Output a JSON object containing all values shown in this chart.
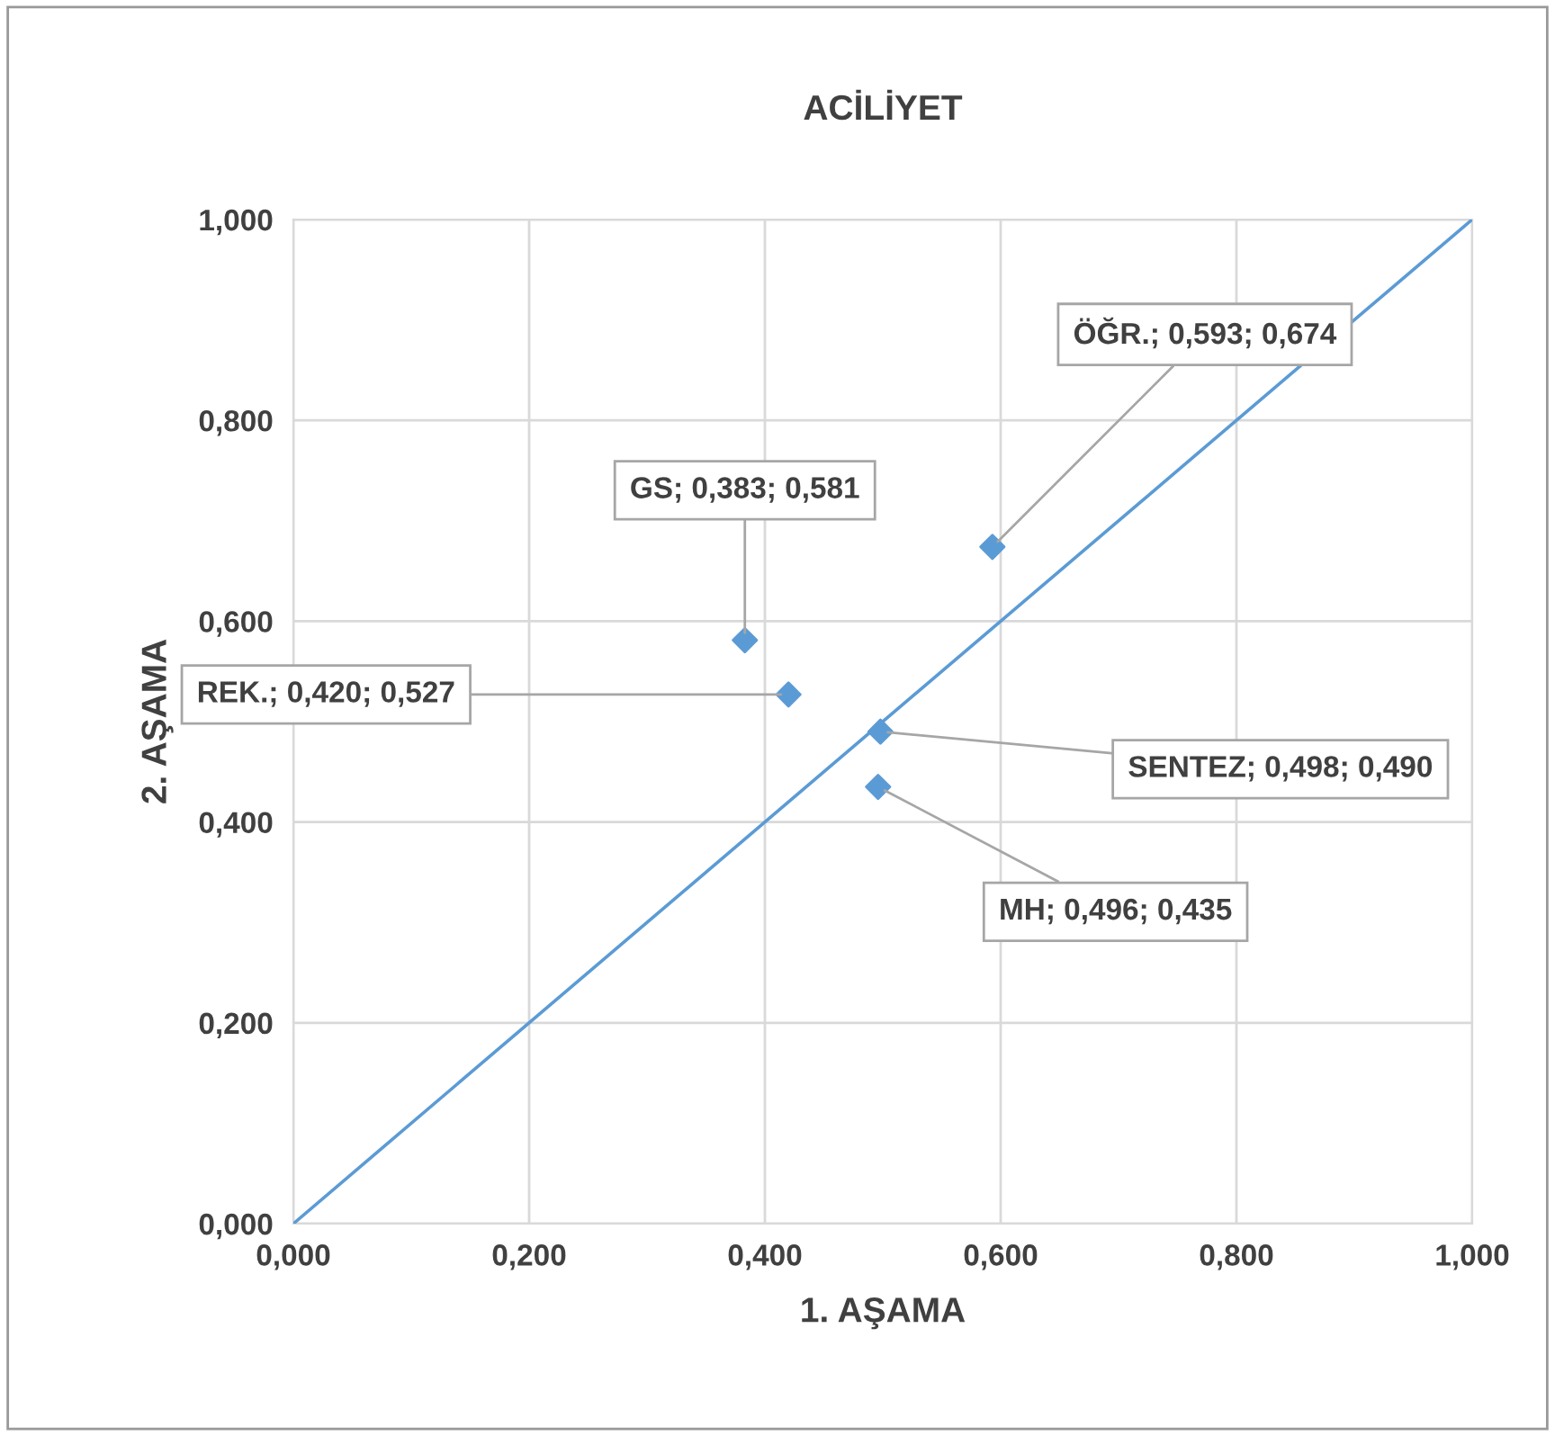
{
  "chart_data": {
    "type": "scatter",
    "title": "ACİLİYET",
    "xlabel": "1. AŞAMA",
    "ylabel": "2. AŞAMA",
    "x": [
      0.383,
      0.593,
      0.42,
      0.498,
      0.496
    ],
    "series": [
      {
        "color": "#5b9bd5",
        "values": [
          0.581,
          0.674,
          0.527,
          0.49,
          0.435
        ],
        "marker": "diamond"
      },
      {
        "type": "line",
        "color": "#5b9bd5",
        "x": [
          0,
          1
        ],
        "values": [
          0,
          1
        ],
        "marker": "none",
        "line_style": "solid"
      }
    ],
    "annotations": [
      {
        "text": "GS; 0,383; 0,581",
        "x": 0.383,
        "y": 0.581
      },
      {
        "text": "ÖĞR.; 0,593; 0,674",
        "x": 0.593,
        "y": 0.674
      },
      {
        "text": "REK.; 0,420; 0,527",
        "x": 0.42,
        "y": 0.527
      },
      {
        "text": "SENTEZ; 0,498; 0,490",
        "x": 0.498,
        "y": 0.49
      },
      {
        "text": "MH; 0,496; 0,435",
        "x": 0.496,
        "y": 0.435
      }
    ],
    "xlim": [
      0,
      1
    ],
    "ylim": [
      0,
      1
    ],
    "xticks": [
      {
        "value": 0,
        "label": "0,000"
      },
      {
        "value": 0.2,
        "label": "0,200"
      },
      {
        "value": 0.4,
        "label": "0,400"
      },
      {
        "value": 0.6,
        "label": "0,600"
      },
      {
        "value": 0.8,
        "label": "0,800"
      },
      {
        "value": 1,
        "label": "1,000"
      }
    ],
    "yticks": [
      {
        "value": 0,
        "label": "0,000"
      },
      {
        "value": 0.2,
        "label": "0,200"
      },
      {
        "value": 0.4,
        "label": "0,400"
      },
      {
        "value": 0.6,
        "label": "0,600"
      },
      {
        "value": 0.8,
        "label": "0,800"
      },
      {
        "value": 1,
        "label": "1,000"
      }
    ],
    "grid": true,
    "legend": false
  }
}
